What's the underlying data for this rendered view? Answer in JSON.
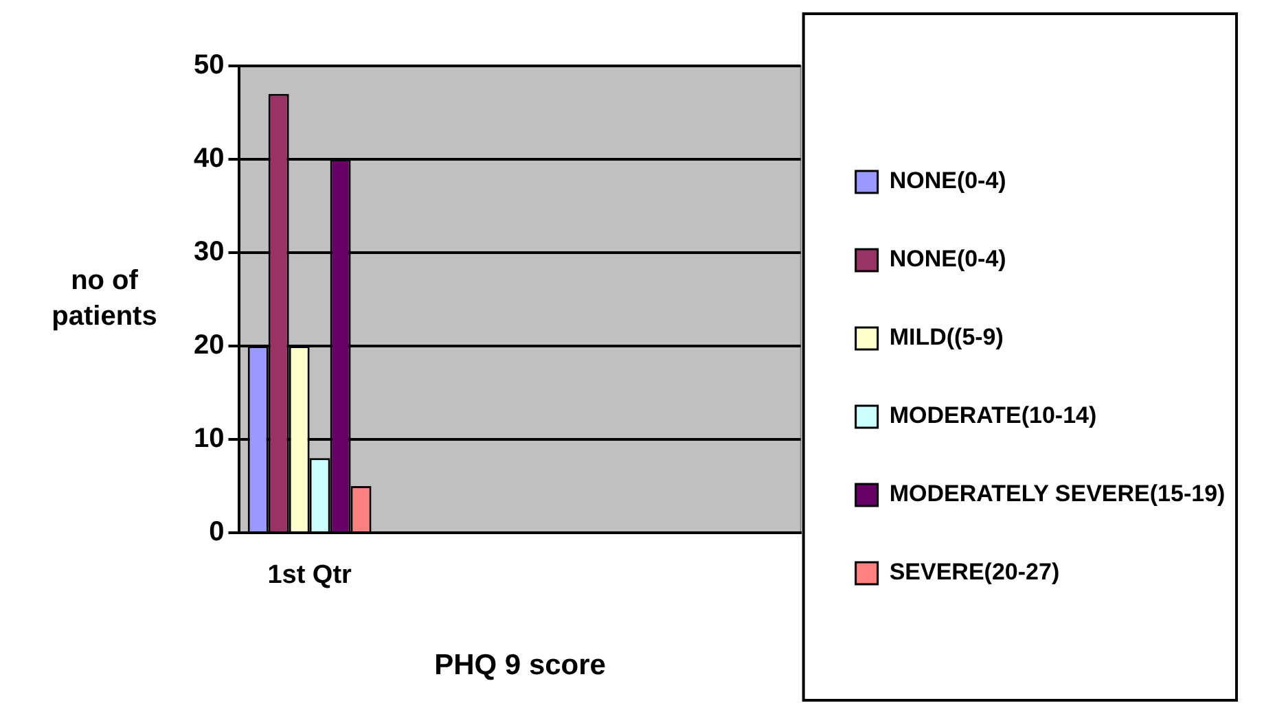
{
  "chart_data": {
    "type": "bar",
    "xlabel": "PHQ 9 score",
    "ylabel": "no of patients",
    "categories": [
      "1st Qtr",
      null,
      null,
      null
    ],
    "series": [
      {
        "name": "NONE(0-4)",
        "color": "#9999ff",
        "values": [
          20,
          null,
          null,
          null
        ]
      },
      {
        "name": "NONE(0-4)",
        "color": "#993366",
        "values": [
          47,
          null,
          null,
          null
        ]
      },
      {
        "name": "MILD((5-9)",
        "color": "#ffffcc",
        "values": [
          20,
          null,
          null,
          null
        ]
      },
      {
        "name": "MODERATE(10-14)",
        "color": "#ccffff",
        "values": [
          8,
          null,
          null,
          null
        ]
      },
      {
        "name": "MODERATELY SEVERE(15-19)",
        "color": "#660066",
        "values": [
          40,
          null,
          null,
          null
        ]
      },
      {
        "name": "SEVERE(20-27)",
        "color": "#ff8080",
        "values": [
          5,
          null,
          null,
          null
        ]
      }
    ],
    "ylim": [
      0,
      50
    ],
    "yticks": [
      0,
      10,
      20,
      30,
      40,
      50
    ],
    "grid": "y",
    "legend": "right"
  }
}
